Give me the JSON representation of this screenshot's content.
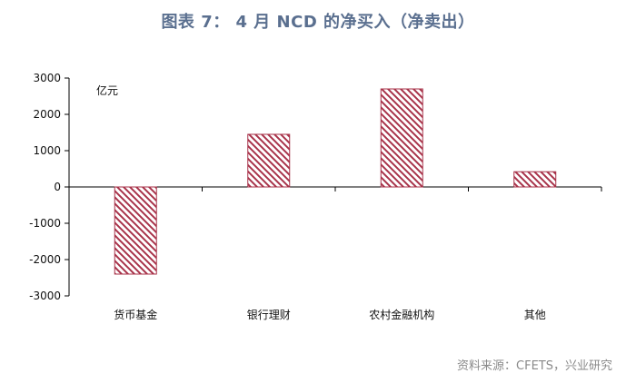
{
  "header": {
    "title": "图表 7： 4 月 NCD 的净买入（净卖出）"
  },
  "footer": {
    "source": "资料来源：CFETS，兴业研究"
  },
  "chart_data": {
    "type": "bar",
    "unit_label": "亿元",
    "categories": [
      "货币基金",
      "银行理财",
      "农村金融机构",
      "其他"
    ],
    "values": [
      -2400,
      1450,
      2700,
      420
    ],
    "ylim": [
      -3000,
      3000
    ],
    "yticks": [
      3000,
      2000,
      1000,
      0,
      -1000,
      -2000,
      -3000
    ],
    "bar_fill": "hatched",
    "bar_color": "#a8334a",
    "grid": false,
    "legend": "none"
  }
}
